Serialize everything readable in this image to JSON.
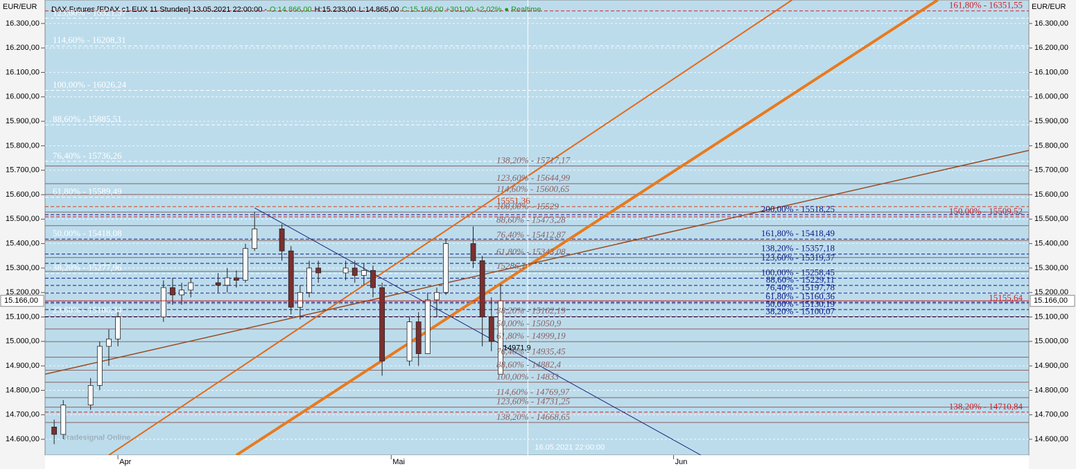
{
  "chart_data": {
    "type": "candlestick",
    "header": {
      "title": "DAX Futures [FDAX c1 EUX 11 Stunden] 13.05.2021 22:00:00 -",
      "open": "O:14.866,00",
      "high": "H:15.233,00",
      "low": "L:14.865,00",
      "close": "C:15.166,00 +301,00 +2,02%",
      "status": "● Realtime"
    },
    "unit_label": "EUR/EUR",
    "watermark": "Tradesignal Online",
    "ylim": [
      14535,
      16396
    ],
    "yticks": [
      {
        "value": 14600,
        "label": "14.600,00"
      },
      {
        "value": 14700,
        "label": "14.700,00"
      },
      {
        "value": 14800,
        "label": "14.800,00"
      },
      {
        "value": 14900,
        "label": "14.900,00"
      },
      {
        "value": 15000,
        "label": "15.000,00"
      },
      {
        "value": 15100,
        "label": "15.100,00"
      },
      {
        "value": 15200,
        "label": "15.200,00"
      },
      {
        "value": 15300,
        "label": "15.300,00"
      },
      {
        "value": 15400,
        "label": "15.400,00"
      },
      {
        "value": 15500,
        "label": "15.500,00"
      },
      {
        "value": 15600,
        "label": "15.600,00"
      },
      {
        "value": 15700,
        "label": "15.700,00"
      },
      {
        "value": 15800,
        "label": "15.800,00"
      },
      {
        "value": 15900,
        "label": "15.900,00"
      },
      {
        "value": 16000,
        "label": "16.000,00"
      },
      {
        "value": 16100,
        "label": "16.100,00"
      },
      {
        "value": 16200,
        "label": "16.200,00"
      },
      {
        "value": 16300,
        "label": "16.300,00"
      }
    ],
    "xlim": [
      "2021-03-24",
      "2021-07-10"
    ],
    "xticks": [
      {
        "value": "2021-04-01",
        "label": "Apr"
      },
      {
        "value": "2021-05-01",
        "label": "Mai"
      },
      {
        "value": "2021-06-01",
        "label": "Jun"
      }
    ],
    "grid": true,
    "last_price": {
      "value": 15166,
      "label": "15.166,00"
    },
    "cursor": {
      "date": "2021-05-16",
      "label": "16.05.2021 22:00:00"
    },
    "candles": {
      "up_color": "#ffffff",
      "down_color": "#7a3030",
      "x": [
        "2021-03-25",
        "2021-03-26",
        "2021-03-29",
        "2021-03-30",
        "2021-03-31",
        "2021-04-01",
        "2021-04-06",
        "2021-04-07",
        "2021-04-08",
        "2021-04-09",
        "2021-04-12",
        "2021-04-13",
        "2021-04-14",
        "2021-04-15",
        "2021-04-16",
        "2021-04-19",
        "2021-04-20",
        "2021-04-21",
        "2021-04-22",
        "2021-04-23",
        "2021-04-26",
        "2021-04-27",
        "2021-04-28",
        "2021-04-29",
        "2021-04-30",
        "2021-05-03",
        "2021-05-04",
        "2021-05-05",
        "2021-05-06",
        "2021-05-07",
        "2021-05-10",
        "2021-05-11",
        "2021-05-12",
        "2021-05-13"
      ],
      "open": [
        14650,
        14620,
        14740,
        14820,
        14980,
        15010,
        15100,
        15220,
        15190,
        15210,
        15240,
        15230,
        15260,
        15250,
        15380,
        15460,
        15370,
        15140,
        15200,
        15300,
        15280,
        15300,
        15270,
        15290,
        15220,
        14920,
        15080,
        14950,
        15170,
        15200,
        15400,
        15330,
        15100,
        14866
      ],
      "high": [
        14680,
        14760,
        14850,
        15000,
        15050,
        15120,
        15250,
        15260,
        15240,
        15260,
        15280,
        15300,
        15290,
        15400,
        15530,
        15480,
        15390,
        15230,
        15330,
        15330,
        15330,
        15330,
        15320,
        15310,
        15240,
        15100,
        15120,
        15200,
        15220,
        15420,
        15470,
        15350,
        15180,
        15233
      ],
      "low": [
        14580,
        14600,
        14720,
        14800,
        14900,
        14980,
        15080,
        15150,
        15150,
        15180,
        15200,
        15200,
        15220,
        15240,
        15370,
        15330,
        15110,
        15090,
        15180,
        15240,
        15250,
        15240,
        15230,
        15180,
        14860,
        14900,
        14900,
        14950,
        15100,
        15190,
        15300,
        14980,
        14960,
        14865
      ],
      "close": [
        14620,
        14740,
        14820,
        14980,
        15010,
        15100,
        15220,
        15190,
        15210,
        15240,
        15230,
        15260,
        15250,
        15380,
        15460,
        15370,
        15140,
        15200,
        15300,
        15280,
        15300,
        15270,
        15290,
        15220,
        14920,
        15080,
        14950,
        15170,
        15200,
        15400,
        15330,
        15100,
        15000,
        15166
      ]
    },
    "trend_lines": [
      {
        "color": "#e87a1e",
        "width": 4,
        "points": [
          [
            "2021-04-14",
            14535
          ],
          [
            "2021-06-30",
            16396
          ]
        ]
      },
      {
        "color": "#e06a1a",
        "width": 2,
        "points": [
          [
            "2021-03-31",
            14535
          ],
          [
            "2021-06-14",
            16396
          ]
        ]
      },
      {
        "color": "#9a4a20",
        "width": 1.5,
        "points": [
          [
            "2021-03-24",
            14866
          ],
          [
            "2021-07-10",
            15781
          ]
        ]
      },
      {
        "color": "#1a237e",
        "width": 1,
        "points": [
          [
            "2021-04-16",
            15546
          ],
          [
            "2021-06-04",
            14535
          ]
        ]
      }
    ],
    "fib_sets": [
      {
        "color": "#ffffff",
        "dashed": true,
        "levels": [
          {
            "value": 16321.57,
            "label": "123,60% - 16321,57"
          },
          {
            "value": 16208.31,
            "label": "114,60% - 16208,31"
          },
          {
            "value": 16026.24,
            "label": "100,00% - 16026,24"
          },
          {
            "value": 15885.51,
            "label": "88,60% - 15885,51"
          },
          {
            "value": 15736.26,
            "label": "76,40% - 15736,26"
          },
          {
            "value": 15589.49,
            "label": "61,80% - 15589,49"
          },
          {
            "value": 15418.08,
            "label": "50,00% - 15418,08"
          },
          {
            "value": 15277.96,
            "label": "38,20% - 15277,96"
          },
          {
            "value": 15106.34,
            "label": "23,60% - 15106,34"
          }
        ]
      },
      {
        "color": "#8a6060",
        "dashed": false,
        "levels": [
          {
            "value": 15717.17,
            "label": "138,20% - 15717,17"
          },
          {
            "value": 15644.99,
            "label": "123,60% - 15644,99"
          },
          {
            "value": 15600.65,
            "label": "114,60% - 15600,65"
          },
          {
            "value": 15529,
            "label": "100,00% - 15529"
          },
          {
            "value": 15473.28,
            "label": "88,60% - 15473,28"
          },
          {
            "value": 15412.87,
            "label": "76,40% - 15412,87"
          },
          {
            "value": 15343.08,
            "label": "61,80% - 15343,08"
          },
          {
            "value": 15286.1,
            "label": "15286,1"
          },
          {
            "value": 15102.19,
            "label": "38,20% - 15102,19"
          },
          {
            "value": 15050.9,
            "label": "50,00% - 15050,9"
          },
          {
            "value": 14999.19,
            "label": "61,80% - 14999,19"
          },
          {
            "value": 14935.45,
            "label": "76,40% - 14935,45"
          },
          {
            "value": 14882.4,
            "label": "88,60% - 14882,4"
          },
          {
            "value": 14833,
            "label": "100,00% - 14833"
          },
          {
            "value": 14769.97,
            "label": "114,60% - 14769,97"
          },
          {
            "value": 14731.25,
            "label": "123,60% - 14731,25"
          },
          {
            "value": 14668.65,
            "label": "138,20% - 14668,65"
          }
        ]
      },
      {
        "color": "#0d1b8a",
        "dashed": true,
        "levels": [
          {
            "value": 15518.25,
            "label": "200,00% - 15518,25"
          },
          {
            "value": 15418.49,
            "label": "161,80% - 15418,49"
          },
          {
            "value": 15357.18,
            "label": "138,20% - 15357,18"
          },
          {
            "value": 15319.37,
            "label": "123,60% - 15319,37"
          },
          {
            "value": 15258.45,
            "label": "100,00% - 15258,45"
          },
          {
            "value": 15229.11,
            "label": "88,60% - 15229,11"
          },
          {
            "value": 15197.78,
            "label": "76,40% - 15197,78"
          },
          {
            "value": 15160.36,
            "label": "61,80% - 15160,36"
          },
          {
            "value": 15130.19,
            "label": "50,00% - 15130,19"
          },
          {
            "value": 15100.07,
            "label": "38,20% - 15100,07"
          }
        ]
      },
      {
        "color": "#d0202a",
        "dashed": true,
        "levels": [
          {
            "value": 16351.55,
            "label": "161,80% - 16351,55"
          },
          {
            "value": 15509.52,
            "label": "150,00% - 15509,52"
          },
          {
            "value": 15155.64,
            "label": "15155,64"
          },
          {
            "value": 14710.84,
            "label": "138,20% - 14710,84"
          }
        ]
      },
      {
        "color": "#d04020",
        "dashed": true,
        "levels": [
          {
            "value": 15551.36,
            "label": "15551,36"
          }
        ]
      }
    ],
    "annotations": [
      {
        "text": "14971,9",
        "date": "2021-05-13",
        "value": 14971.9
      }
    ]
  }
}
